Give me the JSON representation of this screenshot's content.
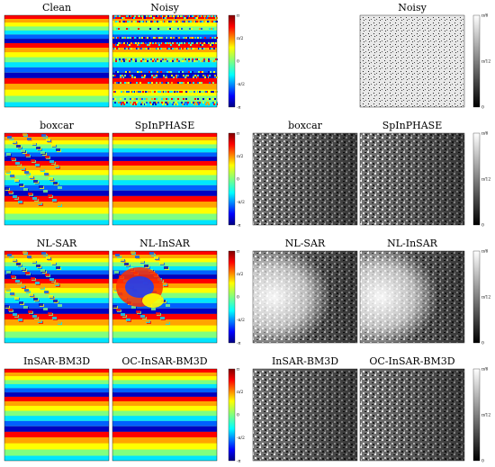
{
  "panels": {
    "clean": {
      "title": "Clean"
    },
    "noisy_phase": {
      "title": "Noisy"
    },
    "noisy_coh": {
      "title": "Noisy"
    },
    "boxcar_phase": {
      "title": "boxcar"
    },
    "spinphase_phase": {
      "title": "SpInPHASE"
    },
    "boxcar_coh": {
      "title": "boxcar"
    },
    "spinphase_coh": {
      "title": "SpInPHASE"
    },
    "nlsar_phase": {
      "title": "NL-SAR"
    },
    "nlinsar_phase": {
      "title": "NL-InSAR"
    },
    "nlsar_coh": {
      "title": "NL-SAR"
    },
    "nlinsar_coh": {
      "title": "NL-InSAR"
    },
    "bm3d_phase": {
      "title": "InSAR-BM3D"
    },
    "ocbm3d_phase": {
      "title": "OC-InSAR-BM3D"
    },
    "bm3d_coh": {
      "title": "InSAR-BM3D"
    },
    "ocbm3d_coh": {
      "title": "OC-InSAR-BM3D"
    }
  },
  "colorbars": {
    "phase": {
      "colormap": "jet",
      "ticks": [
        "π",
        "π/2",
        "0",
        "-π/2",
        "-π"
      ]
    },
    "coherence": {
      "colormap": "gray",
      "ticks": [
        "π/6",
        "π/12",
        "0"
      ]
    }
  }
}
